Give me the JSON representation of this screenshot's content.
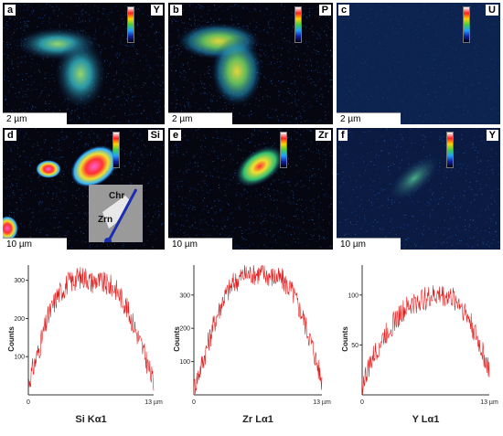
{
  "maps": [
    {
      "letter": "a",
      "element": "Y",
      "scale": "2 µm"
    },
    {
      "letter": "b",
      "element": "P",
      "scale": "2 µm"
    },
    {
      "letter": "c",
      "element": "U",
      "scale": "2 µm"
    },
    {
      "letter": "d",
      "element": "Si",
      "scale": "10 µm",
      "inset": {
        "top": "Chr",
        "bottom": "Zrn"
      }
    },
    {
      "letter": "e",
      "element": "Zr",
      "scale": "10 µm"
    },
    {
      "letter": "f",
      "element": "Y",
      "scale": "10 µm"
    }
  ],
  "chart_data": [
    {
      "type": "line",
      "title": "",
      "xlabel": "Si Kα1",
      "ylabel": "Counts",
      "x_ticks": [
        "0",
        "13 µm"
      ],
      "y_ticks": [
        "100",
        "200",
        "300"
      ],
      "xlim": [
        0,
        13
      ],
      "ylim": [
        0,
        340
      ],
      "color": "#e02020",
      "series": [
        {
          "x": [
            0,
            1,
            2,
            3,
            4,
            5,
            6,
            6.5,
            7,
            8,
            9,
            10,
            11,
            12,
            13
          ],
          "y": [
            30,
            110,
            200,
            260,
            290,
            305,
            310,
            295,
            300,
            290,
            280,
            240,
            180,
            110,
            30
          ]
        }
      ]
    },
    {
      "type": "line",
      "title": "",
      "xlabel": "Zr Lα1",
      "ylabel": "Counts",
      "x_ticks": [
        "0",
        "13 µm"
      ],
      "y_ticks": [
        "100",
        "200",
        "300"
      ],
      "xlim": [
        0,
        13
      ],
      "ylim": [
        0,
        390
      ],
      "color": "#e02020",
      "series": [
        {
          "x": [
            0,
            1,
            2,
            3,
            4,
            5,
            6,
            7,
            8,
            9,
            10,
            11,
            12,
            13
          ],
          "y": [
            20,
            110,
            210,
            290,
            335,
            360,
            365,
            365,
            355,
            345,
            310,
            240,
            150,
            40
          ]
        }
      ]
    },
    {
      "type": "line",
      "title": "",
      "xlabel": "Y Lα1",
      "ylabel": "Counts",
      "x_ticks": [
        "0",
        "13 µm"
      ],
      "y_ticks": [
        "50",
        "100"
      ],
      "xlim": [
        0,
        13
      ],
      "ylim": [
        0,
        130
      ],
      "color": "#e02020",
      "series": [
        {
          "x": [
            0,
            1,
            2,
            3,
            4,
            5,
            6,
            7,
            8,
            9,
            10,
            11,
            12,
            13
          ],
          "y": [
            10,
            35,
            55,
            70,
            82,
            90,
            95,
            98,
            100,
            98,
            92,
            75,
            50,
            25
          ]
        }
      ]
    }
  ]
}
